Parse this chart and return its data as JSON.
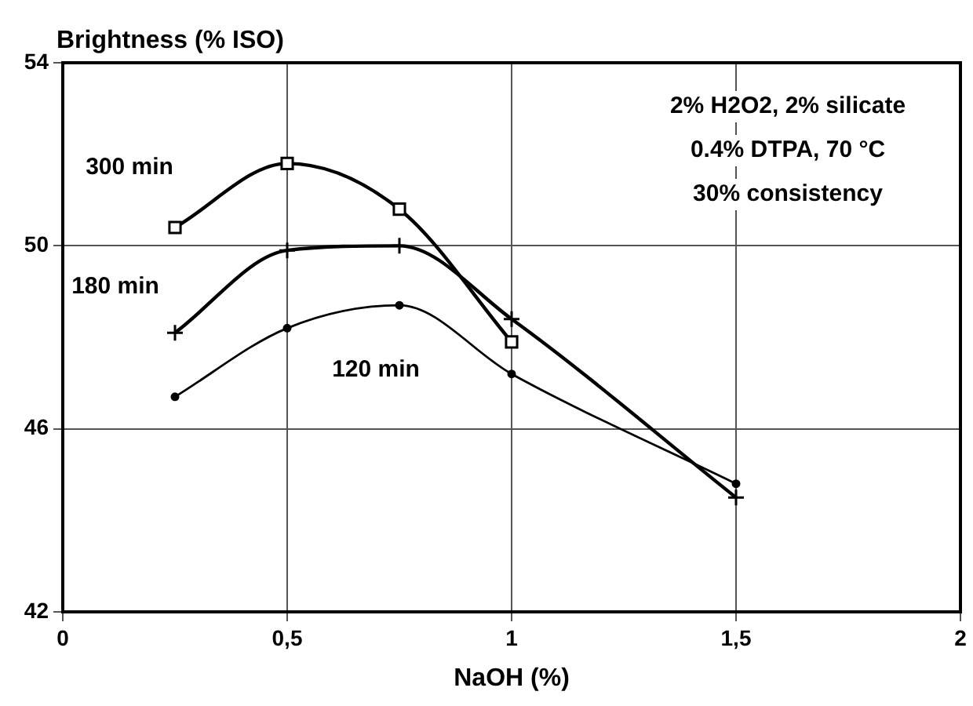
{
  "chart_data": {
    "type": "line",
    "xlabel": "NaOH (%)",
    "ylabel": "Brightness (% ISO)",
    "xlim": [
      0,
      2
    ],
    "xticks": [
      0,
      {
        "value": 0.5,
        "label": "0,5"
      },
      1,
      {
        "value": 1.5,
        "label": "1,5"
      },
      2
    ],
    "ylim": [
      42,
      54
    ],
    "yticks": [
      42,
      46,
      50,
      54
    ],
    "grid": true,
    "legend": false,
    "series": [
      {
        "name": "300 min",
        "color": "#000000",
        "marker": "square",
        "x": [
          0.25,
          0.5,
          0.75,
          1.0
        ],
        "values": [
          50.4,
          51.8,
          50.8,
          47.9
        ]
      },
      {
        "name": "180 min",
        "color": "#000000",
        "marker": "cross",
        "x": [
          0.25,
          0.5,
          0.75,
          1.0,
          1.5
        ],
        "values": [
          48.1,
          49.9,
          50.0,
          48.4,
          44.5
        ]
      },
      {
        "name": "120 min",
        "color": "#000000",
        "marker": "circle",
        "x": [
          0.25,
          0.5,
          0.75,
          1.0,
          1.5
        ],
        "values": [
          46.7,
          48.2,
          48.7,
          47.2,
          44.8
        ]
      }
    ],
    "annotations": [
      "2% H2O2, 2% silicate",
      "0.4% DTPA, 70 °C",
      "30% consistency"
    ]
  }
}
